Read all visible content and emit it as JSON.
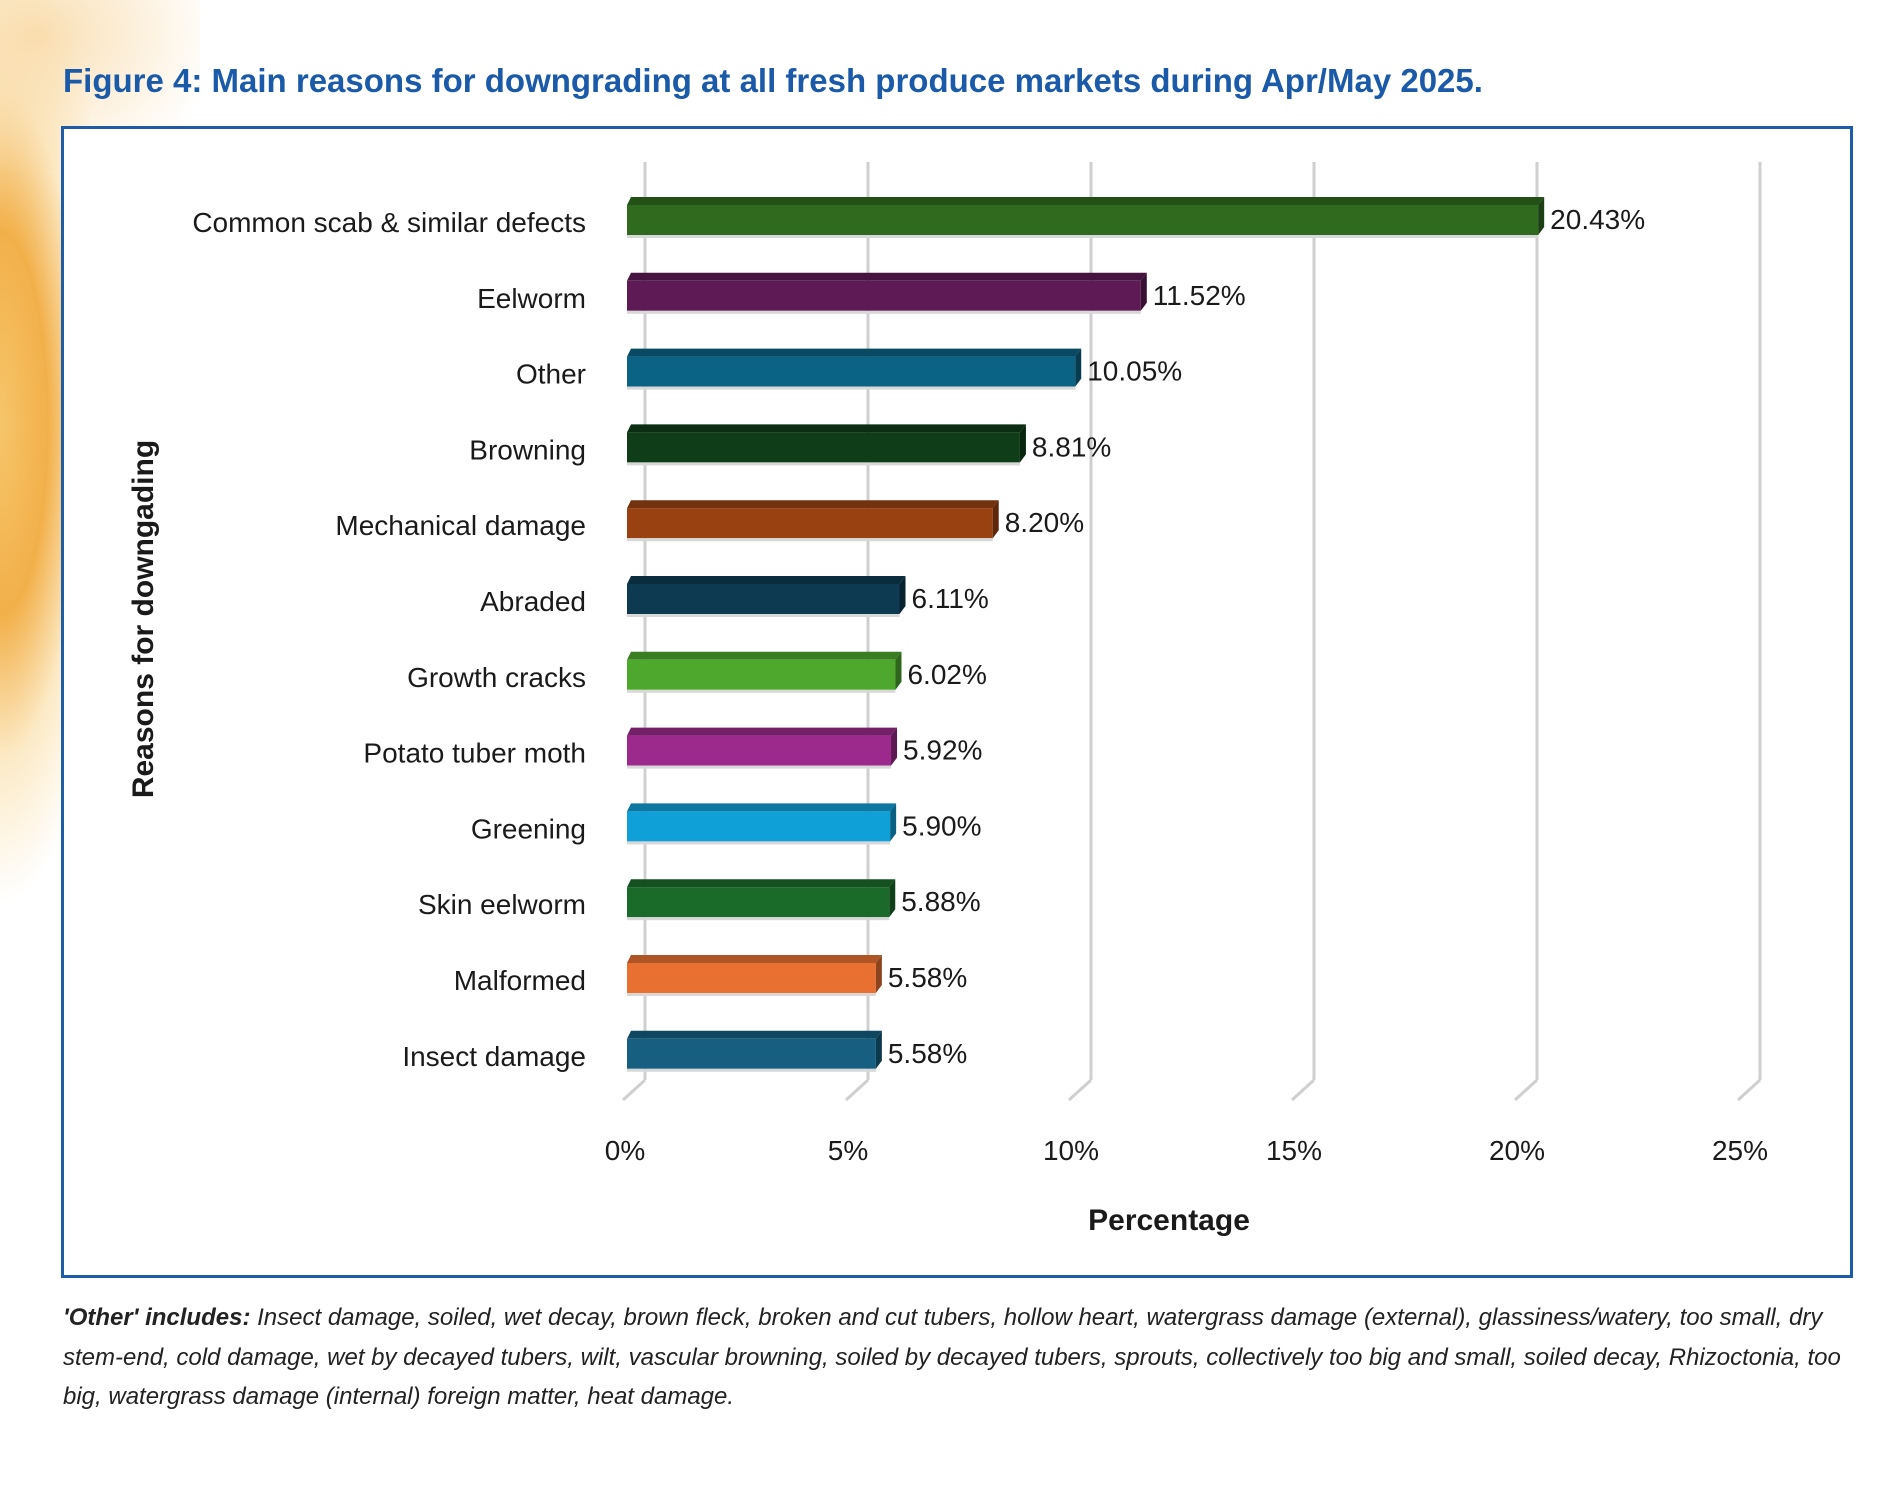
{
  "title": "Figure 4: Main reasons for downgrading at all fresh produce markets during Apr/May 2025.",
  "chart_data": {
    "type": "bar",
    "orientation": "horizontal",
    "style": "3d",
    "categories": [
      "Common scab & similar defects",
      "Eelworm",
      "Other",
      "Browning",
      "Mechanical damage",
      "Abraded",
      "Growth cracks",
      "Potato tuber moth",
      "Greening",
      "Skin eelworm",
      "Malformed",
      "Insect damage"
    ],
    "values": [
      20.43,
      11.52,
      10.05,
      8.81,
      8.2,
      6.11,
      6.02,
      5.92,
      5.9,
      5.88,
      5.58,
      5.58
    ],
    "data_labels": [
      "20.43%",
      "11.52%",
      "10.05%",
      "8.81%",
      "8.20%",
      "6.11%",
      "6.02%",
      "5.92%",
      "5.90%",
      "5.88%",
      "5.58%",
      "5.58%"
    ],
    "colors": [
      "#2f6a1f",
      "#5e1a55",
      "#0a6385",
      "#0f3d18",
      "#9a4112",
      "#0d3a50",
      "#4ea82e",
      "#9b2a8c",
      "#10a0d8",
      "#1a6b2a",
      "#e87132",
      "#165f80"
    ],
    "xlabel": "Percentage",
    "ylabel": "Reasons for downgading",
    "xlim": [
      0,
      25
    ],
    "xticks": [
      0,
      5,
      10,
      15,
      20,
      25
    ],
    "xtick_labels": [
      "0%",
      "5%",
      "10%",
      "15%",
      "20%",
      "25%"
    ],
    "grid": true,
    "legend": "none"
  },
  "footnote": {
    "label": "'Other' includes:",
    "lines": [
      " Insect damage, soiled, wet decay, brown fleck, broken and cut tubers, hollow heart, watergrass damage",
      "(external), glassiness/watery, too small, dry stem-end, cold damage, wet by decayed tubers, wilt, vascular browning, soiled",
      "by decayed tubers, sprouts, collectively too big and small, soiled decay, Rhizoctonia, too big, watergrass damage (internal)",
      "foreign matter, heat damage."
    ]
  }
}
